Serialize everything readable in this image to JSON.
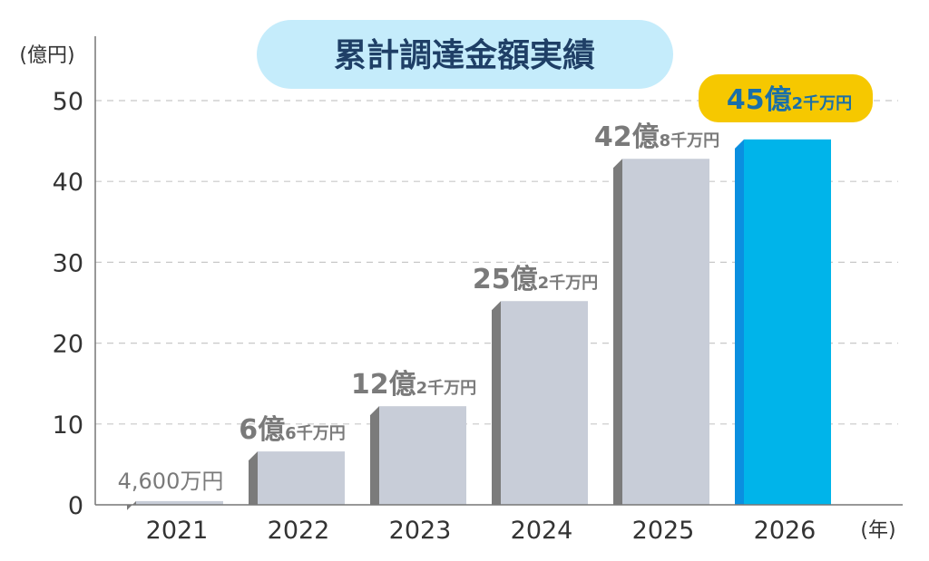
{
  "chart_data": {
    "type": "bar",
    "title": "累計調達金額実績",
    "ylabel": "(億円)",
    "xlabel": "(年)",
    "ylim": [
      0,
      50
    ],
    "yticks": [
      0,
      10,
      20,
      30,
      40,
      50
    ],
    "grid": true,
    "categories": [
      "2021",
      "2022",
      "2023",
      "2024",
      "2025",
      "2026"
    ],
    "values": [
      0.46,
      6.6,
      12.2,
      25.2,
      42.8,
      45.2
    ],
    "data_labels": [
      {
        "main": "4,600万円",
        "sub": ""
      },
      {
        "main": "6億",
        "sub": "6千万円"
      },
      {
        "main": "12億",
        "sub": "2千万円"
      },
      {
        "main": "25億",
        "sub": "2千万円"
      },
      {
        "main": "42億",
        "sub": "8千万円"
      },
      {
        "main": "45億",
        "sub": "2千万円"
      }
    ],
    "highlight_index": 5,
    "colors": {
      "bar": "#c8cdd8",
      "bar_side": "#7b7b7b",
      "highlight": "#00b4ea",
      "highlight_side": "#0a8fe0",
      "title_bg": "#c5ecfb",
      "highlight_label_bg": "#f6c800"
    }
  }
}
